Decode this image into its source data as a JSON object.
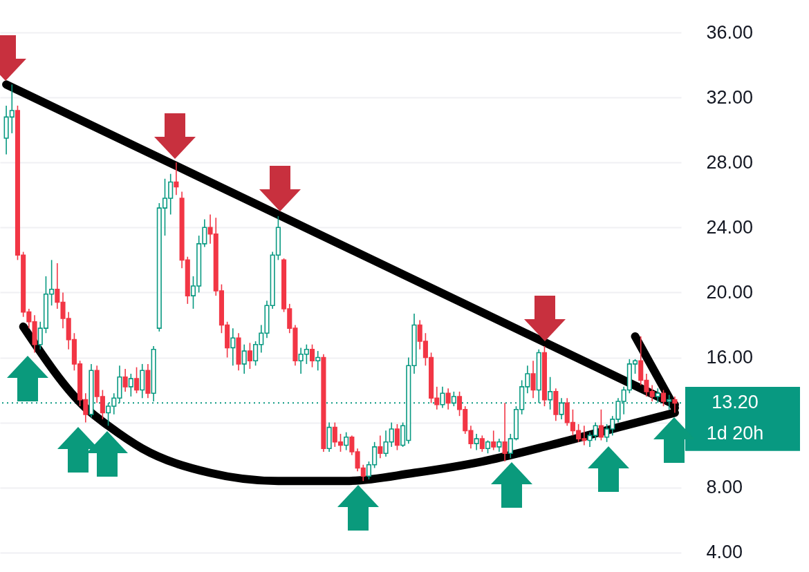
{
  "chart_data": {
    "type": "candlestick",
    "categories": [
      null,
      null,
      null,
      null,
      null,
      null,
      null,
      null,
      null,
      null,
      null,
      null,
      null,
      null,
      null,
      null,
      null,
      null,
      null,
      null,
      null,
      null,
      null,
      null,
      null,
      null,
      null,
      null,
      null,
      null,
      null,
      null,
      null,
      null,
      null,
      null,
      null,
      null,
      null,
      null,
      null,
      null,
      null,
      null,
      null,
      null,
      null,
      null,
      null,
      null,
      null,
      null,
      null,
      null,
      null,
      null,
      null,
      null,
      null,
      null,
      null,
      null,
      null,
      null,
      null,
      null,
      null,
      null,
      null,
      null,
      null,
      null,
      null,
      null,
      null,
      null,
      null,
      null,
      null,
      null,
      null,
      null,
      null,
      null,
      null,
      null,
      null,
      null,
      null,
      null,
      null,
      null,
      null,
      null,
      null,
      null,
      null,
      null,
      null,
      null,
      null,
      null,
      null,
      null,
      null,
      null,
      null,
      null,
      null,
      null,
      null,
      null,
      null,
      null,
      null,
      null,
      null,
      null,
      null
    ],
    "ohlc": [
      [
        29.5,
        31.5,
        28.5,
        30.8
      ],
      [
        30.8,
        32.8,
        29.8,
        31.2
      ],
      [
        31.2,
        31.5,
        22.0,
        22.3
      ],
      [
        22.3,
        22.5,
        18.5,
        18.8
      ],
      [
        18.8,
        19.0,
        17.8,
        18.2
      ],
      [
        18.2,
        18.6,
        16.3,
        16.8
      ],
      [
        16.8,
        18.2,
        16.5,
        17.8
      ],
      [
        17.8,
        21.0,
        17.5,
        19.9
      ],
      [
        19.9,
        22.0,
        19.2,
        20.2
      ],
      [
        20.2,
        21.8,
        19.0,
        19.4
      ],
      [
        19.4,
        20.0,
        17.8,
        18.4
      ],
      [
        18.4,
        18.8,
        16.5,
        17.1
      ],
      [
        17.1,
        17.5,
        15.2,
        15.6
      ],
      [
        15.6,
        15.8,
        13.0,
        13.4
      ],
      [
        13.4,
        13.8,
        12.0,
        12.5
      ],
      [
        12.5,
        15.6,
        12.3,
        15.2
      ],
      [
        15.2,
        15.5,
        13.2,
        13.6
      ],
      [
        13.6,
        14.0,
        12.2,
        12.6
      ],
      [
        12.6,
        13.2,
        11.8,
        13.0
      ],
      [
        13.0,
        13.8,
        12.5,
        13.5
      ],
      [
        13.5,
        15.5,
        13.2,
        14.8
      ],
      [
        14.8,
        15.3,
        13.9,
        14.2
      ],
      [
        14.2,
        15.0,
        13.6,
        14.7
      ],
      [
        14.7,
        15.4,
        13.8,
        14.0
      ],
      [
        14.0,
        15.6,
        13.5,
        15.2
      ],
      [
        15.2,
        15.6,
        13.5,
        13.8
      ],
      [
        13.8,
        16.7,
        13.3,
        16.5
      ],
      [
        17.8,
        25.5,
        17.6,
        25.2
      ],
      [
        25.2,
        27.0,
        23.5,
        25.8
      ],
      [
        25.8,
        27.3,
        24.8,
        26.8
      ],
      [
        26.8,
        28.0,
        26.0,
        26.5
      ],
      [
        25.8,
        26.2,
        21.5,
        22.0
      ],
      [
        22.0,
        22.2,
        19.3,
        19.8
      ],
      [
        19.8,
        21.0,
        19.0,
        20.4
      ],
      [
        20.4,
        23.5,
        20.0,
        23.0
      ],
      [
        23.0,
        24.5,
        22.8,
        24.0
      ],
      [
        24.0,
        24.8,
        23.0,
        23.6
      ],
      [
        23.6,
        24.6,
        19.8,
        20.1
      ],
      [
        20.1,
        20.5,
        17.5,
        18.0
      ],
      [
        18.0,
        18.2,
        16.0,
        16.6
      ],
      [
        16.6,
        17.8,
        15.5,
        17.2
      ],
      [
        17.2,
        17.5,
        15.2,
        15.6
      ],
      [
        15.6,
        16.8,
        15.0,
        16.4
      ],
      [
        16.4,
        16.9,
        15.3,
        15.8
      ],
      [
        15.8,
        17.0,
        15.5,
        16.8
      ],
      [
        16.8,
        18.0,
        16.3,
        17.5
      ],
      [
        17.5,
        19.5,
        17.2,
        19.2
      ],
      [
        19.2,
        22.5,
        19.0,
        22.3
      ],
      [
        22.3,
        24.7,
        22.0,
        24.0
      ],
      [
        22.0,
        22.1,
        18.8,
        19.0
      ],
      [
        19.0,
        19.3,
        17.5,
        17.8
      ],
      [
        17.8,
        18.0,
        15.5,
        15.8
      ],
      [
        15.8,
        16.6,
        15.0,
        16.2
      ],
      [
        16.2,
        16.8,
        15.6,
        16.5
      ],
      [
        16.5,
        16.8,
        15.4,
        15.8
      ],
      [
        15.8,
        16.4,
        15.2,
        16.0
      ],
      [
        16.0,
        16.2,
        10.2,
        10.4
      ],
      [
        10.4,
        12.0,
        10.2,
        11.7
      ],
      [
        11.7,
        12.0,
        10.5,
        10.8
      ],
      [
        10.8,
        11.3,
        10.2,
        10.6
      ],
      [
        10.6,
        11.4,
        10.3,
        11.1
      ],
      [
        11.1,
        11.2,
        10.0,
        10.2
      ],
      [
        10.2,
        10.4,
        9.0,
        9.2
      ],
      [
        9.2,
        9.4,
        8.4,
        8.7
      ],
      [
        8.7,
        9.6,
        8.5,
        9.4
      ],
      [
        9.4,
        10.8,
        9.2,
        10.5
      ],
      [
        10.5,
        11.2,
        9.8,
        10.1
      ],
      [
        10.1,
        11.5,
        9.9,
        10.8
      ],
      [
        10.8,
        12.0,
        10.5,
        11.6
      ],
      [
        11.6,
        11.9,
        10.3,
        10.6
      ],
      [
        10.6,
        12.0,
        10.5,
        11.8
      ],
      [
        10.9,
        16.0,
        10.7,
        15.5
      ],
      [
        15.5,
        18.7,
        15.0,
        18.0
      ],
      [
        18.0,
        18.3,
        16.5,
        17.0
      ],
      [
        17.0,
        17.5,
        15.5,
        16.0
      ],
      [
        16.0,
        16.3,
        13.2,
        13.5
      ],
      [
        13.5,
        14.2,
        12.8,
        13.1
      ],
      [
        13.1,
        14.2,
        12.9,
        13.8
      ],
      [
        13.8,
        14.1,
        12.8,
        13.2
      ],
      [
        13.2,
        13.9,
        13.0,
        13.6
      ],
      [
        13.6,
        13.9,
        12.4,
        12.8
      ],
      [
        12.8,
        13.0,
        11.3,
        11.5
      ],
      [
        11.5,
        11.8,
        10.4,
        10.7
      ],
      [
        10.7,
        11.3,
        10.3,
        11.0
      ],
      [
        11.0,
        11.2,
        10.2,
        10.4
      ],
      [
        10.4,
        10.9,
        10.1,
        10.8
      ],
      [
        10.8,
        11.5,
        10.3,
        10.5
      ],
      [
        10.5,
        11.0,
        10.2,
        10.8
      ],
      [
        10.8,
        13.2,
        9.6,
        10.1
      ],
      [
        10.1,
        11.3,
        9.8,
        11.0
      ],
      [
        11.0,
        13.0,
        10.9,
        12.8
      ],
      [
        12.8,
        14.6,
        12.5,
        14.2
      ],
      [
        14.2,
        15.5,
        13.8,
        15.0
      ],
      [
        15.0,
        15.8,
        13.5,
        14.0
      ],
      [
        14.0,
        16.5,
        13.2,
        16.3
      ],
      [
        16.3,
        16.7,
        13.0,
        13.4
      ],
      [
        13.4,
        14.8,
        12.8,
        13.9
      ],
      [
        13.9,
        14.1,
        12.1,
        12.5
      ],
      [
        12.5,
        13.5,
        12.2,
        13.2
      ],
      [
        13.2,
        13.5,
        11.8,
        12.0
      ],
      [
        12.0,
        12.8,
        11.2,
        11.5
      ],
      [
        11.5,
        11.9,
        10.8,
        11.0
      ],
      [
        11.0,
        11.8,
        10.6,
        10.9
      ],
      [
        10.9,
        11.4,
        10.5,
        11.2
      ],
      [
        11.2,
        12.0,
        10.9,
        11.8
      ],
      [
        11.8,
        12.8,
        10.9,
        11.1
      ],
      [
        11.1,
        11.9,
        10.8,
        11.6
      ],
      [
        11.6,
        12.4,
        11.2,
        12.2
      ],
      [
        12.2,
        13.5,
        12.0,
        13.3
      ],
      [
        13.3,
        14.2,
        12.5,
        14.0
      ],
      [
        14.0,
        15.9,
        13.8,
        15.6
      ],
      [
        15.6,
        15.9,
        15.0,
        15.8
      ],
      [
        15.8,
        17.3,
        14.3,
        14.6
      ],
      [
        14.6,
        15.0,
        13.6,
        13.9
      ],
      [
        13.9,
        14.3,
        13.3,
        13.6
      ],
      [
        13.6,
        14.1,
        13.2,
        13.8
      ],
      [
        13.8,
        14.0,
        13.0,
        13.3
      ],
      [
        13.3,
        13.7,
        12.8,
        13.4
      ],
      [
        13.4,
        13.6,
        12.6,
        13.2
      ]
    ],
    "colors": [
      "#089981",
      "#089981",
      "#f23645",
      "#f23645",
      "#f23645",
      "#f23645",
      "#089981",
      "#089981",
      "#089981",
      "#f23645",
      "#f23645",
      "#f23645",
      "#f23645",
      "#f23645",
      "#f23645",
      "#089981",
      "#f23645",
      "#f23645",
      "#089981",
      "#089981",
      "#089981",
      "#f23645",
      "#089981",
      "#f23645",
      "#089981",
      "#f23645",
      "#089981",
      "#089981",
      "#089981",
      "#089981",
      "#f23645",
      "#f23645",
      "#f23645",
      "#089981",
      "#089981",
      "#089981",
      "#f23645",
      "#f23645",
      "#f23645",
      "#f23645",
      "#089981",
      "#f23645",
      "#089981",
      "#f23645",
      "#089981",
      "#089981",
      "#089981",
      "#089981",
      "#089981",
      "#f23645",
      "#f23645",
      "#f23645",
      "#089981",
      "#089981",
      "#f23645",
      "#089981",
      "#f23645",
      "#089981",
      "#f23645",
      "#f23645",
      "#089981",
      "#f23645",
      "#f23645",
      "#f23645",
      "#089981",
      "#089981",
      "#f23645",
      "#089981",
      "#089981",
      "#f23645",
      "#089981",
      "#089981",
      "#089981",
      "#f23645",
      "#f23645",
      "#f23645",
      "#f23645",
      "#089981",
      "#f23645",
      "#089981",
      "#f23645",
      "#f23645",
      "#f23645",
      "#089981",
      "#f23645",
      "#089981",
      "#f23645",
      "#089981",
      "#f23645",
      "#089981",
      "#089981",
      "#089981",
      "#089981",
      "#f23645",
      "#089981",
      "#f23645",
      "#089981",
      "#f23645",
      "#089981",
      "#f23645",
      "#f23645",
      "#f23645",
      "#f23645",
      "#089981",
      "#089981",
      "#f23645",
      "#089981",
      "#089981",
      "#089981",
      "#089981",
      "#089981",
      "#089981",
      "#f23645",
      "#f23645",
      "#f23645",
      "#089981",
      "#f23645",
      "#089981",
      "#f23645"
    ],
    "series": [
      {
        "type": "line",
        "color": "#000000",
        "values": [
          32.8,
          null,
          null,
          null,
          null,
          null,
          null,
          null,
          null,
          null,
          null,
          null,
          null,
          null,
          null,
          null,
          null,
          null,
          null,
          null,
          null,
          null,
          null,
          null,
          null,
          null,
          null,
          null,
          null,
          null,
          null,
          null,
          null,
          null,
          null,
          null,
          null,
          null,
          null,
          null,
          null,
          null,
          null,
          null,
          null,
          null,
          null,
          null,
          null,
          null,
          null,
          null,
          null,
          null,
          null,
          null,
          null,
          null,
          null,
          null,
          null,
          null,
          null,
          null,
          null,
          null,
          null,
          null,
          null,
          null,
          null,
          null,
          null,
          null,
          null,
          null,
          null,
          null,
          null,
          null,
          null,
          null,
          null,
          null,
          null,
          null,
          null,
          null,
          null,
          null,
          null,
          null,
          null,
          null,
          null,
          null,
          null,
          null,
          null,
          null,
          null,
          null,
          null,
          null,
          null,
          null,
          null,
          null,
          null,
          null,
          null,
          null,
          null,
          null,
          null,
          null,
          null,
          null,
          13.1
        ]
      },
      {
        "type": "line",
        "color": "#000000",
        "values": [
          null,
          null,
          null,
          17.9,
          null,
          null,
          null,
          null,
          null,
          null,
          null,
          null,
          null,
          null,
          12.9,
          null,
          null,
          null,
          11.8,
          null,
          null,
          null,
          null,
          null,
          10.4,
          null,
          null,
          null,
          null,
          null,
          null,
          null,
          null,
          null,
          null,
          null,
          8.9,
          null,
          null,
          null,
          null,
          null,
          null,
          null,
          null,
          null,
          null,
          null,
          8.4,
          null,
          null,
          null,
          null,
          null,
          null,
          null,
          null,
          null,
          null,
          null,
          8.4,
          null,
          null,
          null,
          null,
          null,
          null,
          null,
          null,
          null,
          null,
          null,
          8.9,
          null,
          null,
          null,
          null,
          null,
          null,
          null,
          null,
          null,
          null,
          null,
          9.6,
          null,
          null,
          null,
          null,
          null,
          null,
          null,
          null,
          null,
          null,
          null,
          10.6,
          null,
          null,
          null,
          null,
          null,
          null,
          null,
          null,
          null,
          null,
          null,
          11.7,
          null,
          null,
          null,
          null,
          null,
          null,
          null,
          null,
          null,
          12.6
        ]
      },
      {
        "type": "line",
        "color": "#000000",
        "values": [
          null,
          null,
          null,
          null,
          null,
          null,
          null,
          null,
          null,
          null,
          null,
          null,
          null,
          null,
          null,
          null,
          null,
          null,
          null,
          null,
          null,
          null,
          null,
          null,
          null,
          null,
          null,
          null,
          null,
          null,
          null,
          null,
          null,
          null,
          null,
          null,
          null,
          null,
          null,
          null,
          null,
          null,
          null,
          null,
          null,
          null,
          null,
          null,
          null,
          null,
          null,
          null,
          null,
          null,
          null,
          null,
          null,
          null,
          null,
          null,
          null,
          null,
          null,
          null,
          null,
          null,
          null,
          null,
          null,
          null,
          null,
          null,
          null,
          null,
          null,
          null,
          null,
          null,
          null,
          null,
          null,
          null,
          null,
          null,
          null,
          null,
          null,
          null,
          null,
          null,
          null,
          null,
          null,
          null,
          null,
          null,
          null,
          null,
          null,
          null,
          null,
          null,
          null,
          null,
          null,
          null,
          null,
          null,
          null,
          null,
          null,
          17.3,
          null,
          null,
          null,
          null,
          null,
          null,
          12.9
        ]
      }
    ],
    "ylim": [
      2.8,
      38.0
    ],
    "yticks": [
      {
        "value": 4,
        "label": "4.00"
      },
      {
        "value": 8,
        "label": "8.00"
      },
      {
        "value": 12,
        "label": null
      },
      {
        "value": 16,
        "label": "16.00"
      },
      {
        "value": 20,
        "label": "20.00"
      },
      {
        "value": 24,
        "label": "24.00"
      },
      {
        "value": 28,
        "label": "28.00"
      },
      {
        "value": 32,
        "label": "32.00"
      },
      {
        "value": 36,
        "label": "36.00"
      }
    ],
    "ref_lines": [
      {
        "axis": "y",
        "value": 13.2,
        "label": "13.20",
        "color": "#089981",
        "line_style": "dotted"
      }
    ],
    "annotations": [
      "1d 20h"
    ],
    "grid": "y"
  }
}
